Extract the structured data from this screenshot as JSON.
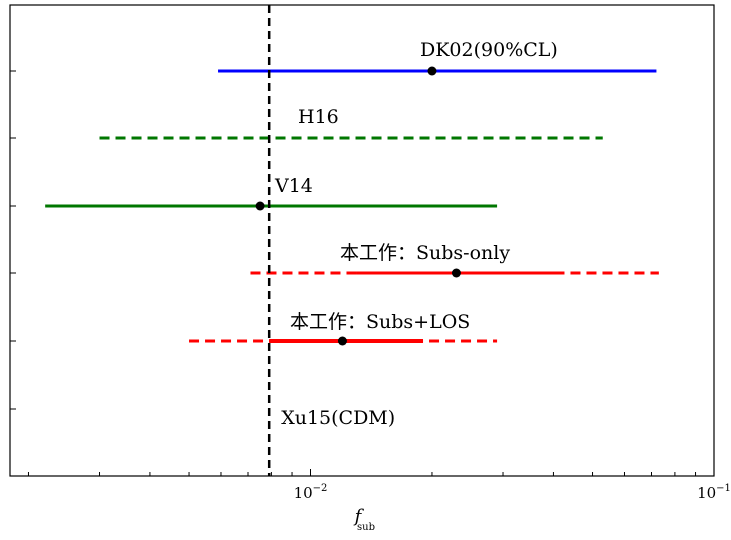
{
  "chart_data": {
    "type": "interval",
    "x_scale": "log",
    "xlim": [
      0.0018,
      0.1
    ],
    "xlabel": "f",
    "xlabel_sub": "sub",
    "x_ticks": [
      {
        "value": 0.01,
        "base": "10",
        "exp": "−2"
      },
      {
        "value": 0.1,
        "base": "10",
        "exp": "−1"
      }
    ],
    "vertical_line": {
      "x": 0.0079,
      "label": "Xu15(CDM)",
      "color": "#000000",
      "style": "dashed"
    },
    "rows": [
      {
        "label": "DK02(90%CL)",
        "point": 0.02,
        "segments": [
          {
            "from": 0.0059,
            "to": 0.072,
            "style": "solid",
            "color": "#0000ff"
          }
        ]
      },
      {
        "label": "H16",
        "point": null,
        "segments": [
          {
            "from": 0.003,
            "to": 0.053,
            "style": "dashed",
            "color": "#007700"
          }
        ]
      },
      {
        "label": "V14",
        "point": 0.0075,
        "segments": [
          {
            "from": 0.0022,
            "to": 0.029,
            "style": "solid",
            "color": "#007700"
          }
        ]
      },
      {
        "label": "本工作：Subs-only",
        "point": 0.023,
        "segments": [
          {
            "from": 0.0071,
            "to": 0.073,
            "style": "dashed",
            "color": "#ff0000"
          },
          {
            "from": 0.013,
            "to": 0.041,
            "style": "solid",
            "color": "#ff0000"
          }
        ]
      },
      {
        "label": "本工作：Subs+LOS",
        "point": 0.012,
        "segments": [
          {
            "from": 0.005,
            "to": 0.029,
            "style": "dashed",
            "color": "#ff0000"
          },
          {
            "from": 0.0079,
            "to": 0.019,
            "style": "thick",
            "color": "#ff0000"
          }
        ]
      }
    ]
  }
}
